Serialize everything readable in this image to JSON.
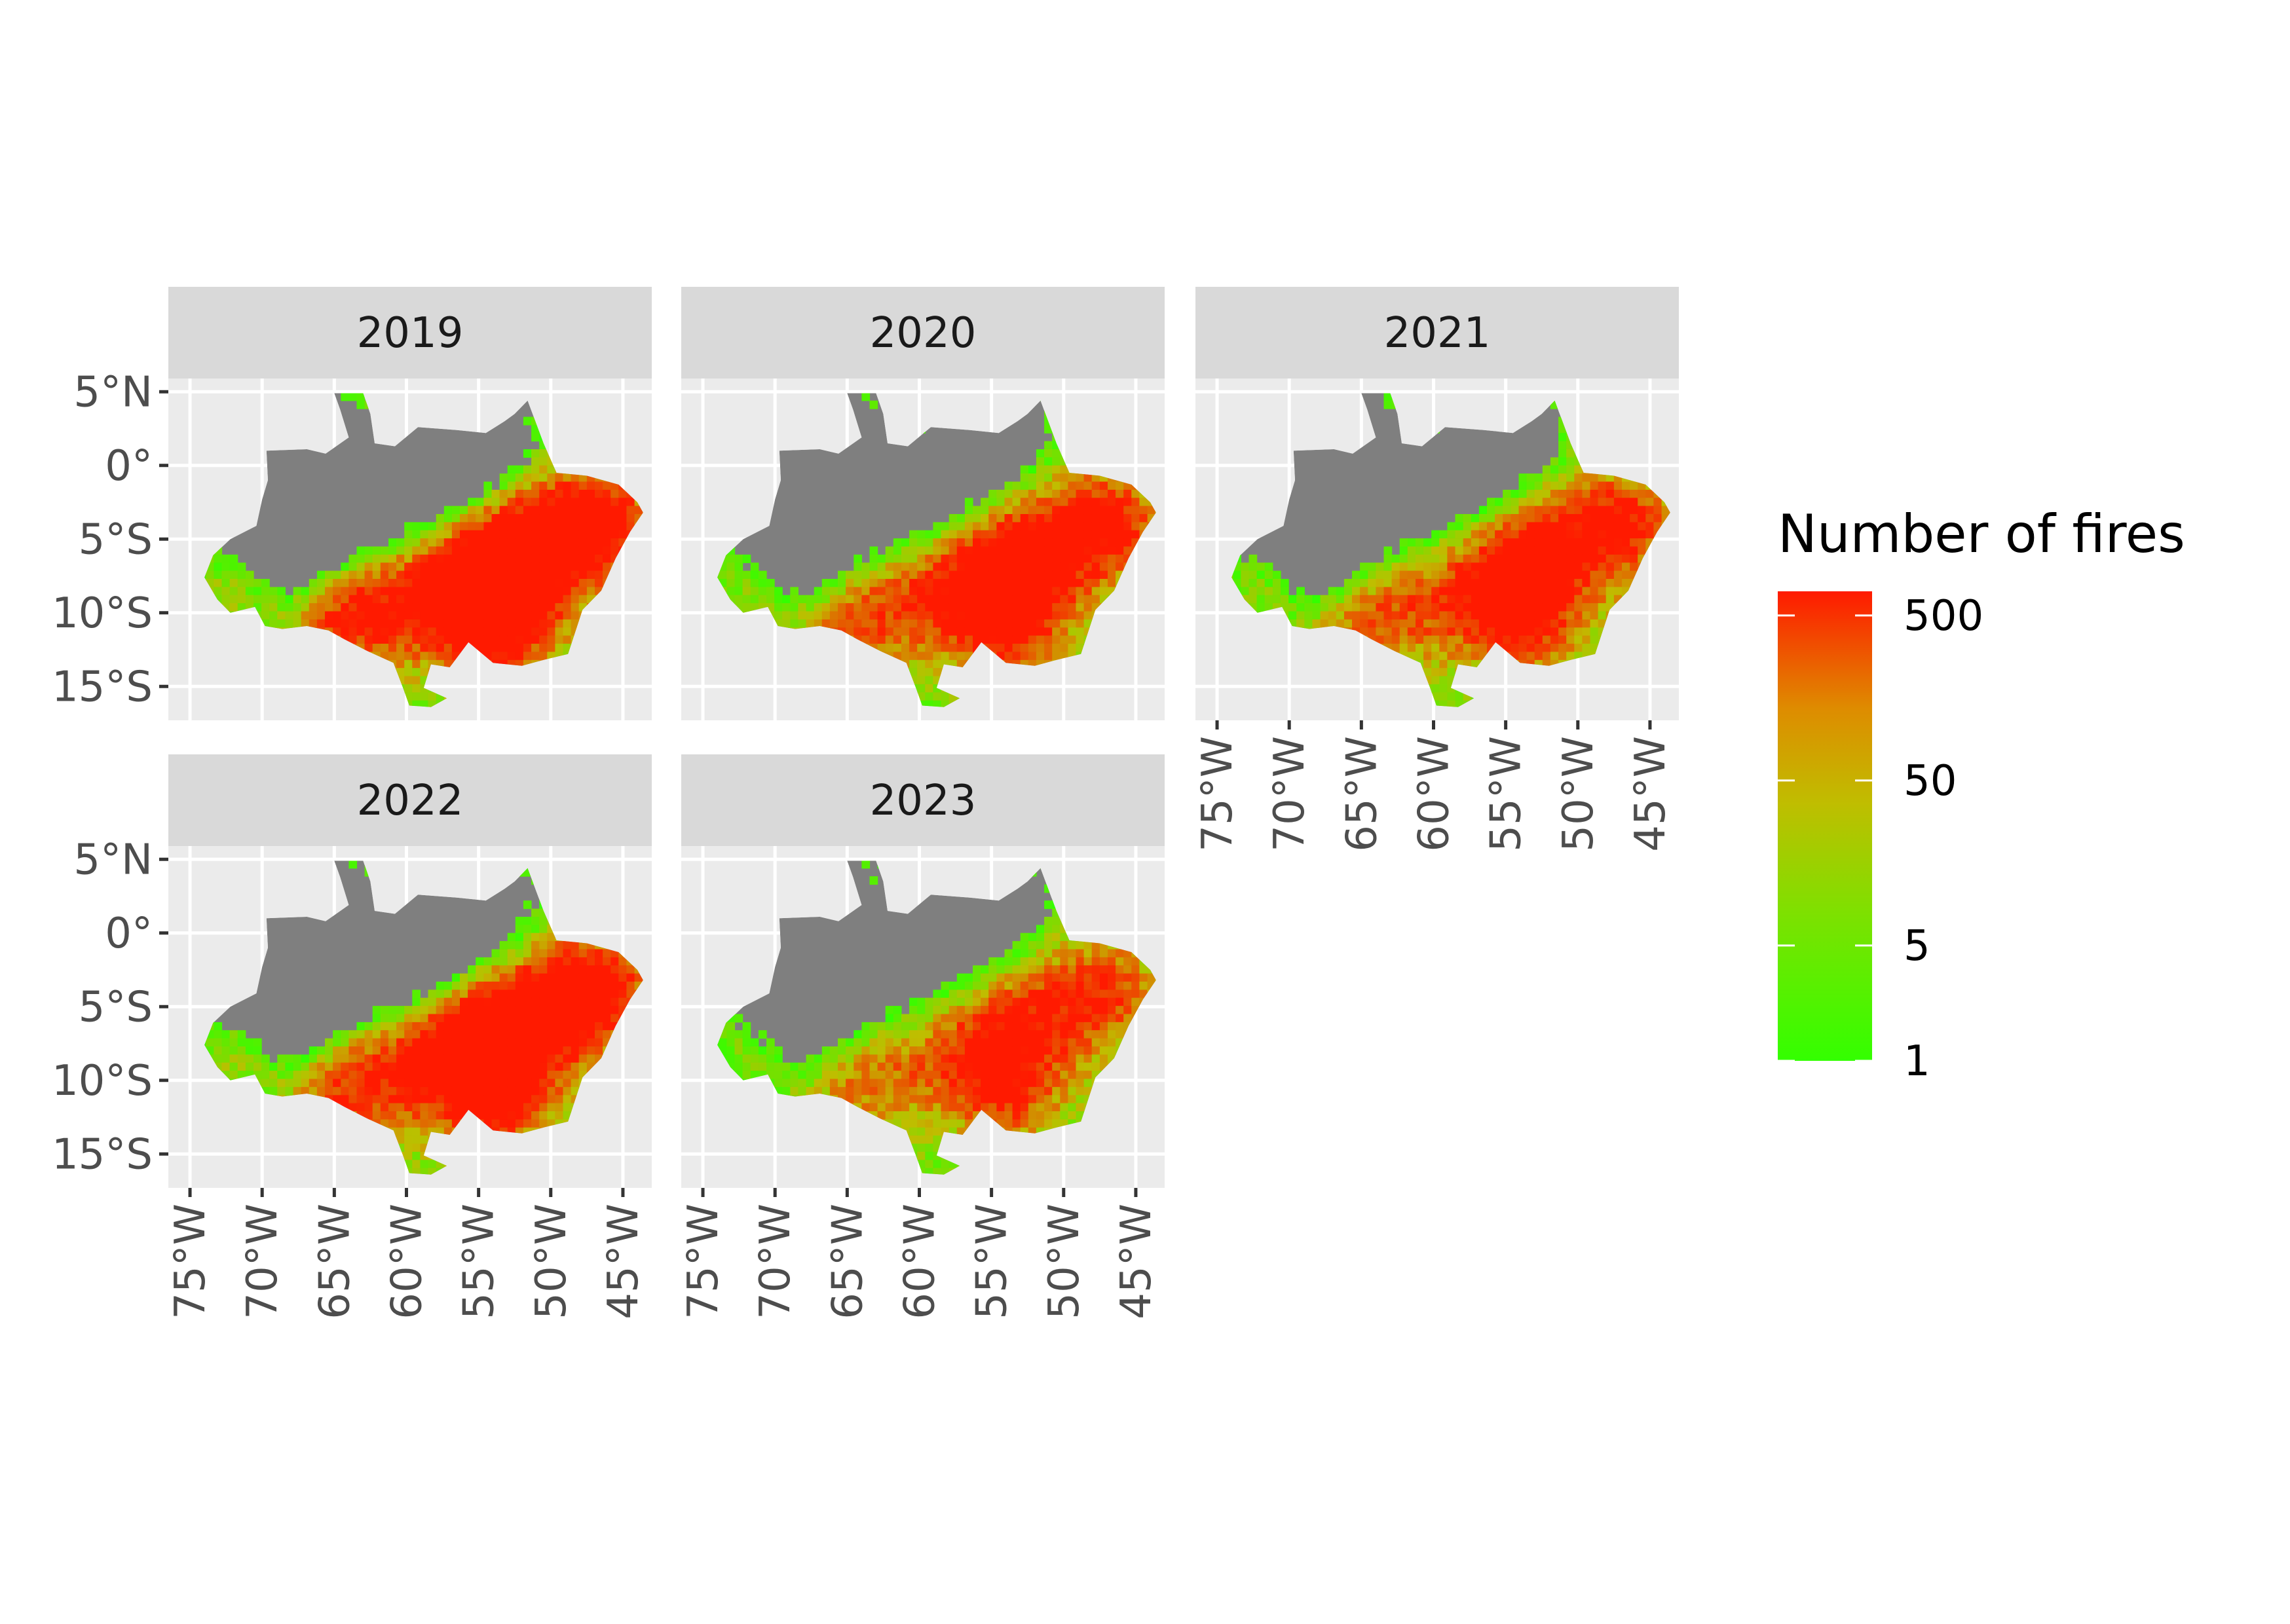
{
  "chart_data": {
    "type": "heatmap",
    "panels": [
      {
        "label": "2019",
        "intensity": 1.0
      },
      {
        "label": "2020",
        "intensity": 0.85
      },
      {
        "label": "2021",
        "intensity": 0.8
      },
      {
        "label": "2022",
        "intensity": 0.95
      },
      {
        "label": "2023",
        "intensity": 0.7
      }
    ],
    "y_axis": {
      "ticks": [
        5,
        0,
        -5,
        -10,
        -15
      ],
      "labels": [
        "5°N",
        "0°",
        "5°S",
        "10°S",
        "15°S"
      ]
    },
    "x_axis": {
      "ticks": [
        -75,
        -70,
        -65,
        -60,
        -55,
        -50,
        -45
      ],
      "labels": [
        "75°W",
        "70°W",
        "65°W",
        "60°W",
        "55°W",
        "50°W",
        "45°W"
      ]
    },
    "xlim": [
      -76.5,
      -43.0
    ],
    "ylim": [
      -17.3,
      5.9
    ],
    "legend": {
      "title": "Number of fires",
      "scale": "log",
      "range": [
        1,
        700
      ],
      "ticks": [
        500,
        50,
        5,
        1
      ],
      "tick_labels": [
        "500",
        "50",
        "5",
        "1"
      ],
      "colors": {
        "low": "#33ff00",
        "mid": "#c0bd00",
        "high": "#ff1a00"
      },
      "position": "right"
    },
    "no_data_color": "#7f7f7f"
  }
}
